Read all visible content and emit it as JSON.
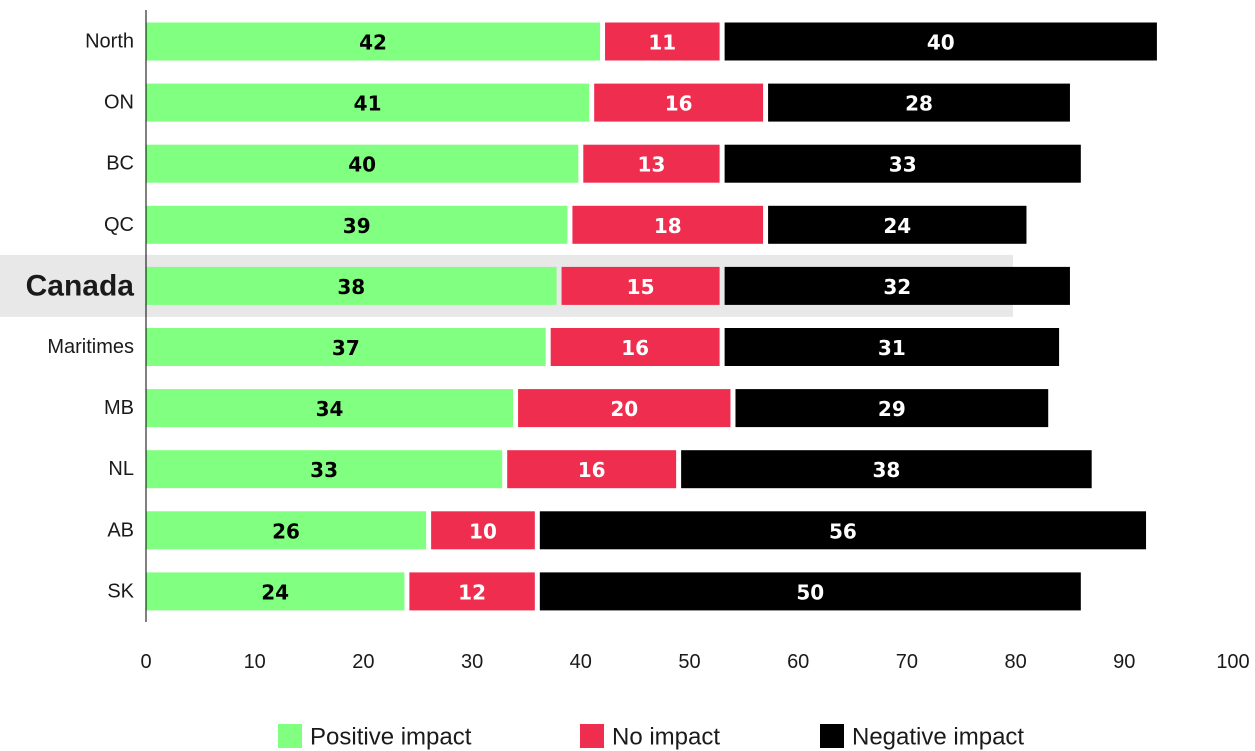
{
  "chart_data": {
    "type": "bar",
    "orientation": "horizontal",
    "stacked": true,
    "categories": [
      "North",
      "ON",
      "BC",
      "QC",
      "Canada",
      "Maritimes",
      "MB",
      "NL",
      "AB",
      "SK"
    ],
    "highlighted_category": "Canada",
    "series": [
      {
        "name": "Positive impact",
        "color": "#80ff80",
        "label_color": "#000000",
        "values": [
          42,
          41,
          40,
          39,
          38,
          37,
          34,
          33,
          26,
          24
        ]
      },
      {
        "name": "No impact",
        "color": "#ef2d4e",
        "label_color": "#ffffff",
        "values": [
          11,
          16,
          13,
          18,
          15,
          16,
          20,
          16,
          10,
          12
        ]
      },
      {
        "name": "Negative impact",
        "color": "#000000",
        "label_color": "#ffffff",
        "values": [
          40,
          28,
          33,
          24,
          32,
          31,
          29,
          38,
          56,
          50
        ]
      }
    ],
    "xlim": [
      0,
      100
    ],
    "xticks": [
      "0",
      "10",
      "20",
      "30",
      "40",
      "50",
      "60",
      "70",
      "80",
      "90",
      "100"
    ],
    "title": "",
    "xlabel": "",
    "ylabel": "",
    "grid": false,
    "legend_position": "bottom",
    "highlight_color": "#e8e8e8"
  }
}
